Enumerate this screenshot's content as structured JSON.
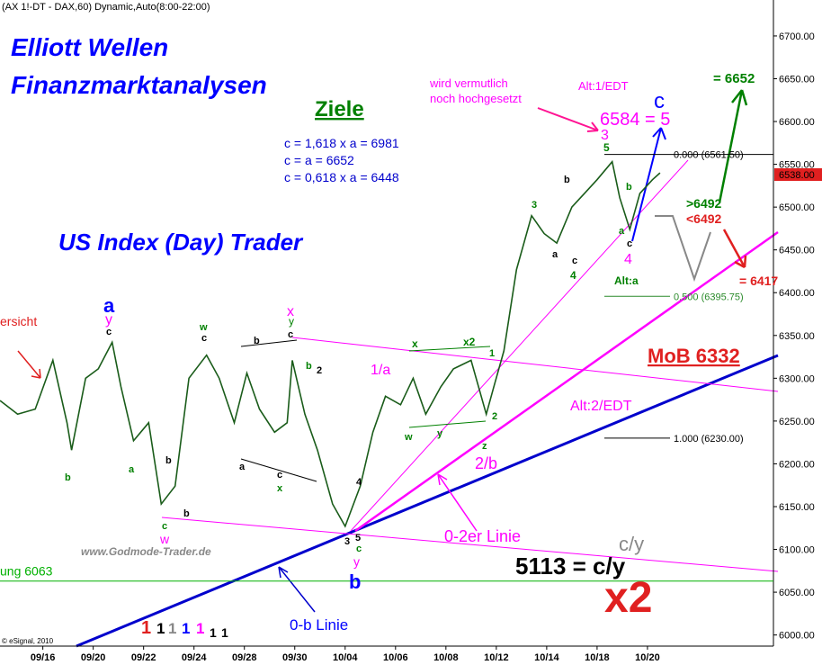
{
  "header": "(AX 1!-DT - DAX,60) Dynamic,Auto(8:00-22:00)",
  "chart_data": {
    "type": "line",
    "color": "#1a5c1a",
    "xlim": [
      0.3,
      31
    ],
    "ylim": [
      5987,
      6742
    ],
    "xticks": [
      {
        "value": 2,
        "label": "09/16"
      },
      {
        "value": 4,
        "label": "09/20"
      },
      {
        "value": 6,
        "label": "09/22"
      },
      {
        "value": 8,
        "label": "09/24"
      },
      {
        "value": 10,
        "label": "09/28"
      },
      {
        "value": 12,
        "label": "09/30"
      },
      {
        "value": 14,
        "label": "10/04"
      },
      {
        "value": 16,
        "label": "10/06"
      },
      {
        "value": 18,
        "label": "10/08"
      },
      {
        "value": 20,
        "label": "10/12"
      },
      {
        "value": 22,
        "label": "10/14"
      },
      {
        "value": 24,
        "label": "10/18"
      },
      {
        "value": 26,
        "label": "10/20"
      }
    ],
    "yticks": [
      {
        "value": 6000,
        "label": "6000.00"
      },
      {
        "value": 6050,
        "label": "6050.00"
      },
      {
        "value": 6100,
        "label": "6100.00"
      },
      {
        "value": 6150,
        "label": "6150.00"
      },
      {
        "value": 6200,
        "label": "6200.00"
      },
      {
        "value": 6250,
        "label": "6250.00"
      },
      {
        "value": 6300,
        "label": "6300.00"
      },
      {
        "value": 6350,
        "label": "6350.00"
      },
      {
        "value": 6400,
        "label": "6400.00"
      },
      {
        "value": 6450,
        "label": "6450.00"
      },
      {
        "value": 6500,
        "label": "6500.00"
      },
      {
        "value": 6550,
        "label": "6550.00"
      },
      {
        "value": 6600,
        "label": "6600.00"
      },
      {
        "value": 6650,
        "label": "6650.00"
      },
      {
        "value": 6700,
        "label": "6700.00"
      }
    ],
    "x": [
      0.3,
      1,
      1.7,
      2.4,
      2.96,
      3.14,
      3.7,
      4.2,
      4.75,
      5.1,
      5.6,
      6.2,
      6.7,
      7.25,
      7.8,
      8.5,
      9.0,
      9.6,
      10.1,
      10.6,
      11.2,
      11.7,
      11.9,
      12.4,
      12.9,
      13.5,
      14.0,
      14.6,
      15.1,
      15.6,
      16.2,
      16.7,
      17.2,
      17.8,
      18.3,
      19.0,
      19.6,
      19.9,
      20.3,
      20.8,
      21.4,
      21.9,
      22.4,
      23.0,
      23.5,
      24.0,
      24.6,
      24.9,
      25.3,
      25.7,
      26.2,
      26.5
    ],
    "values": [
      6274,
      6258,
      6264,
      6321,
      6248,
      6216,
      6300,
      6311,
      6342,
      6290,
      6227,
      6248,
      6153,
      6174,
      6300,
      6327,
      6300,
      6248,
      6306,
      6264,
      6237,
      6248,
      6321,
      6258,
      6216,
      6153,
      6127,
      6174,
      6237,
      6279,
      6269,
      6300,
      6258,
      6290,
      6311,
      6321,
      6258,
      6290,
      6332,
      6427,
      6490,
      6469,
      6458,
      6500,
      6516,
      6532,
      6553,
      6511,
      6474,
      6516,
      6532,
      6540
    ],
    "levels": [
      {
        "value": 6561.5,
        "label": "0.000 (6561.50)"
      },
      {
        "value": 6395.75,
        "label": "0.500 (6395.75)"
      },
      {
        "value": 6230,
        "label": "1.000 (6230.00)"
      }
    ],
    "hline": {
      "value": 6063,
      "label": "ung 6063",
      "color": "#00b000"
    },
    "last_price": {
      "value": 6538,
      "label": "6538.00"
    },
    "annotations": [
      "Elliott Wellen",
      "Finanzmarktanalysen",
      "Ziele",
      "c = 1,618 x a = 6981",
      "c = a = 6652",
      "c = 0,618 x a = 6448",
      "US Index (Day) Trader",
      "wird vermutlich",
      "noch hochgesetzt",
      "Alt:1/EDT",
      "c",
      "6584 = 5",
      "3",
      "5",
      "= 6652",
      ">6492",
      "<6492",
      "= 6417",
      "Alt:a",
      "ersicht",
      "a",
      "y",
      "x",
      "y",
      "1/a",
      "x",
      "x2",
      "MoB 6332",
      "Alt:2/EDT",
      "2/b",
      "w",
      "y",
      "b",
      "0-2er Linie",
      "c/y",
      "5113 = c/y",
      "x2",
      "www.Godmode-Trader.de",
      "0-b Linie",
      "© eSignal, 2010",
      "4",
      "b",
      "3",
      "a",
      "c",
      "4",
      "b",
      "a",
      "c",
      "c",
      "w",
      "c",
      "c",
      "b",
      "b",
      "2",
      "1",
      "b",
      "a",
      "b",
      "c",
      "b",
      "a",
      "c",
      "x",
      "w",
      "y",
      "2",
      "z",
      "4",
      "3",
      "5",
      "c",
      "1",
      "1",
      "1",
      "1",
      "1",
      "1",
      "1"
    ]
  }
}
